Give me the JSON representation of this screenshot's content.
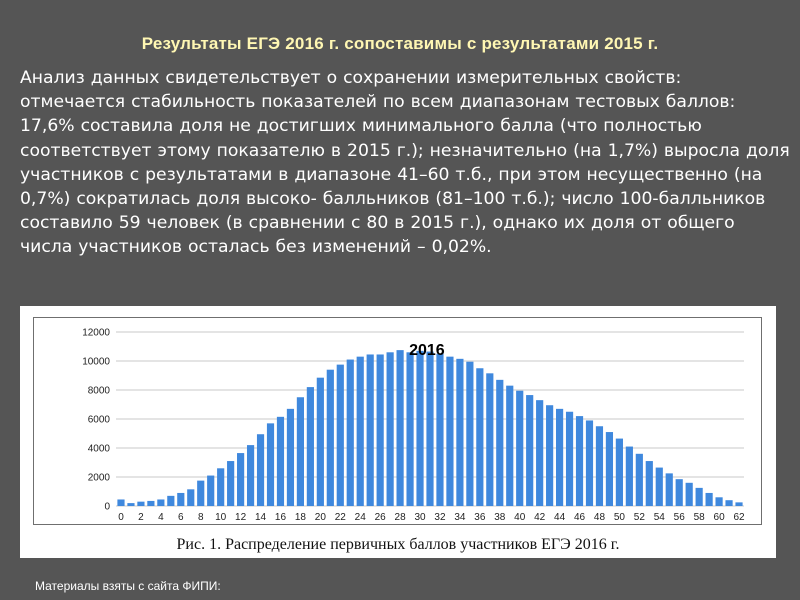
{
  "slide": {
    "title": "Результаты ЕГЭ 2016 г. сопоставимы с результатами 2015 г.",
    "body": "Анализ данных свидетельствует о сохранении измерительных свойств: отмечается стабильность показателей по всем диапазонам тестовых баллов: 17,6% составила доля не достигших минимального балла (что полностью соответствует этому показателю в 2015 г.); незначительно (на 1,7%) выросла доля участников с результатами в диапазоне 41–60 т.б., при этом несущественно (на 0,7%) сократилась доля высоко- балльников (81–100 т.б.); число 100-балльников составило 59 человек (в сравнении с 80 в 2015 г.), однако их доля от общего числа участников осталась без изменений – 0,02%.",
    "caption": "Рис. 1. Распределение первичных баллов участников ЕГЭ 2016 г.",
    "footer": "Материалы взяты с сайта ФИПИ:"
  },
  "colors": {
    "background": "#555555",
    "title": "#fff7b3",
    "bar": "#3f88dd",
    "grid": "#c8c8c8"
  },
  "chart_data": {
    "type": "bar",
    "title": "2016",
    "xlabel": "",
    "ylabel": "",
    "ylim": [
      0,
      12000
    ],
    "yticks": [
      0,
      2000,
      4000,
      6000,
      8000,
      10000,
      12000
    ],
    "xticks": [
      0,
      2,
      4,
      6,
      8,
      10,
      12,
      14,
      16,
      18,
      20,
      22,
      24,
      26,
      28,
      30,
      32,
      34,
      36,
      38,
      40,
      42,
      44,
      46,
      48,
      50,
      52,
      54,
      56,
      58,
      60,
      62
    ],
    "grid": "horizontal",
    "categories": [
      0,
      1,
      2,
      3,
      4,
      5,
      6,
      7,
      8,
      9,
      10,
      11,
      12,
      13,
      14,
      15,
      16,
      17,
      18,
      19,
      20,
      21,
      22,
      23,
      24,
      25,
      26,
      27,
      28,
      29,
      30,
      31,
      32,
      33,
      34,
      35,
      36,
      37,
      38,
      39,
      40,
      41,
      42,
      43,
      44,
      45,
      46,
      47,
      48,
      49,
      50,
      51,
      52,
      53,
      54,
      55,
      56,
      57,
      58,
      59,
      60,
      61,
      62
    ],
    "values": [
      450,
      200,
      300,
      350,
      450,
      700,
      900,
      1150,
      1750,
      2100,
      2600,
      3100,
      3650,
      4200,
      4950,
      5700,
      6150,
      6700,
      7500,
      8200,
      8850,
      9400,
      9750,
      10100,
      10300,
      10450,
      10450,
      10600,
      10750,
      10600,
      10700,
      10650,
      10500,
      10300,
      10150,
      9950,
      9500,
      9150,
      8700,
      8300,
      7950,
      7650,
      7300,
      6950,
      6700,
      6500,
      6200,
      5900,
      5500,
      5100,
      4650,
      4100,
      3600,
      3100,
      2650,
      2250,
      1850,
      1600,
      1250,
      900,
      600,
      400,
      250
    ]
  }
}
